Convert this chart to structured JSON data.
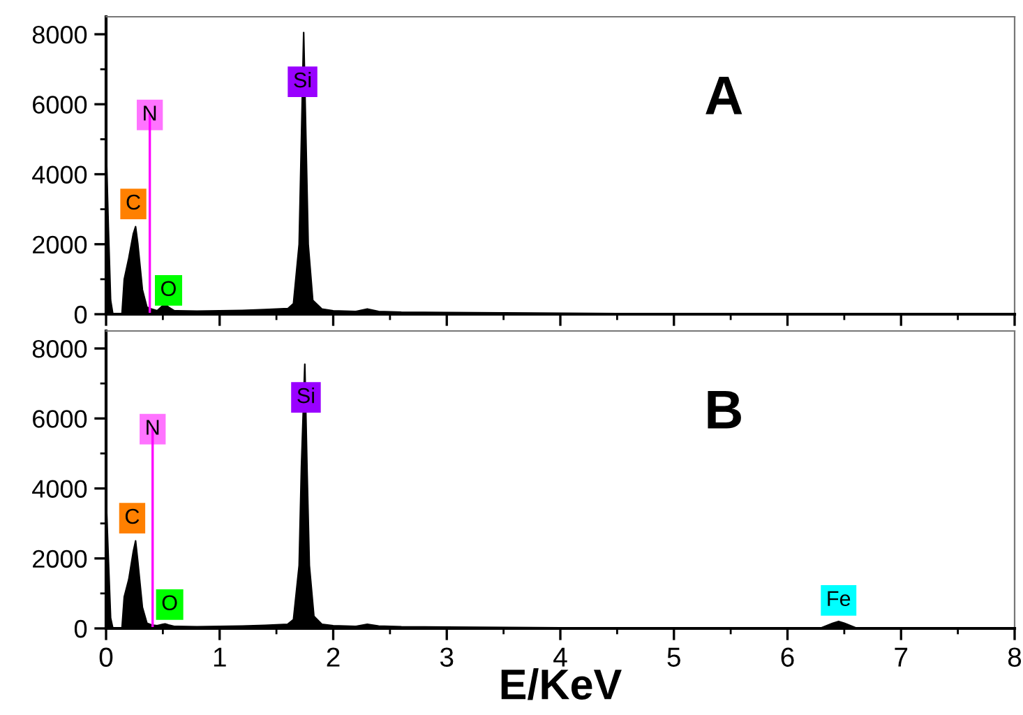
{
  "chart_data": [
    {
      "type": "area",
      "x": [
        0,
        0.02,
        0.04,
        0.06,
        0.1,
        0.14,
        0.16,
        0.2,
        0.24,
        0.26,
        0.28,
        0.32,
        0.36,
        0.4,
        0.45,
        0.5,
        0.52,
        0.55,
        0.6,
        0.8,
        1.0,
        1.2,
        1.4,
        1.6,
        1.65,
        1.7,
        1.72,
        1.74,
        1.76,
        1.78,
        1.82,
        1.9,
        2.0,
        2.2,
        2.3,
        2.4,
        2.6,
        3.0,
        3.5,
        4.0,
        4.5,
        5.0,
        6.0,
        7.0,
        8.0
      ],
      "series": [
        {
          "color": "#000000",
          "values": [
            4900,
            2500,
            400,
            0,
            0,
            0,
            1000,
            1600,
            2300,
            2500,
            2000,
            700,
            200,
            150,
            100,
            250,
            300,
            200,
            100,
            90,
            100,
            110,
            130,
            160,
            300,
            2000,
            5000,
            8050,
            5000,
            2000,
            400,
            150,
            100,
            80,
            150,
            80,
            60,
            50,
            40,
            30,
            20,
            10,
            0,
            0,
            0
          ]
        }
      ],
      "xlim": [
        0,
        8
      ],
      "xticks": [
        0,
        1,
        2,
        3,
        4,
        5,
        6,
        7,
        8
      ],
      "ylim": [
        0,
        8500
      ],
      "yticks": [
        0,
        2000,
        4000,
        6000,
        8000
      ],
      "tick_labels": "y",
      "ref_lines": [
        {
          "axis": "x",
          "value": 0.385,
          "label": "N",
          "color": "#ff00ff"
        }
      ],
      "annotations": [
        "A",
        {
          "text": "Si",
          "x": 1.73,
          "y": 6640
        },
        {
          "text": "C",
          "x": 0.24,
          "y": 3150
        },
        {
          "text": "O",
          "x": 0.55,
          "y": 680
        }
      ]
    },
    {
      "type": "area",
      "x": [
        0,
        0.02,
        0.04,
        0.06,
        0.1,
        0.14,
        0.16,
        0.2,
        0.24,
        0.26,
        0.28,
        0.32,
        0.36,
        0.4,
        0.45,
        0.5,
        0.52,
        0.55,
        0.6,
        0.8,
        1.0,
        1.2,
        1.4,
        1.6,
        1.65,
        1.7,
        1.72,
        1.75,
        1.77,
        1.79,
        1.83,
        1.9,
        2.0,
        2.2,
        2.3,
        2.4,
        2.6,
        3.0,
        3.5,
        4.0,
        4.5,
        5.0,
        6.0,
        6.3,
        6.4,
        6.45,
        6.5,
        6.6,
        7.0,
        8.0
      ],
      "series": [
        {
          "color": "#000000",
          "values": [
            3800,
            2000,
            300,
            0,
            0,
            0,
            900,
            1400,
            2200,
            2500,
            1900,
            600,
            150,
            100,
            80,
            120,
            130,
            100,
            60,
            50,
            60,
            70,
            90,
            120,
            250,
            1800,
            4600,
            7550,
            4500,
            1800,
            350,
            120,
            80,
            60,
            120,
            70,
            50,
            40,
            30,
            20,
            20,
            20,
            20,
            20,
            150,
            200,
            150,
            20,
            20,
            20
          ]
        }
      ],
      "xlim": [
        0,
        8
      ],
      "xticks": [
        0,
        1,
        2,
        3,
        4,
        5,
        6,
        7,
        8
      ],
      "ylim": [
        0,
        8500
      ],
      "yticks": [
        0,
        2000,
        4000,
        6000,
        8000
      ],
      "xlabel": "E/KeV",
      "ref_lines": [
        {
          "axis": "x",
          "value": 0.41,
          "label": "N",
          "color": "#ff00ff"
        }
      ],
      "annotations": [
        "B",
        {
          "text": "Si",
          "x": 1.76,
          "y": 6600
        },
        {
          "text": "C",
          "x": 0.23,
          "y": 3150
        },
        {
          "text": "O",
          "x": 0.56,
          "y": 680
        },
        {
          "text": "Fe",
          "x": 6.45,
          "y": 800
        }
      ]
    }
  ]
}
